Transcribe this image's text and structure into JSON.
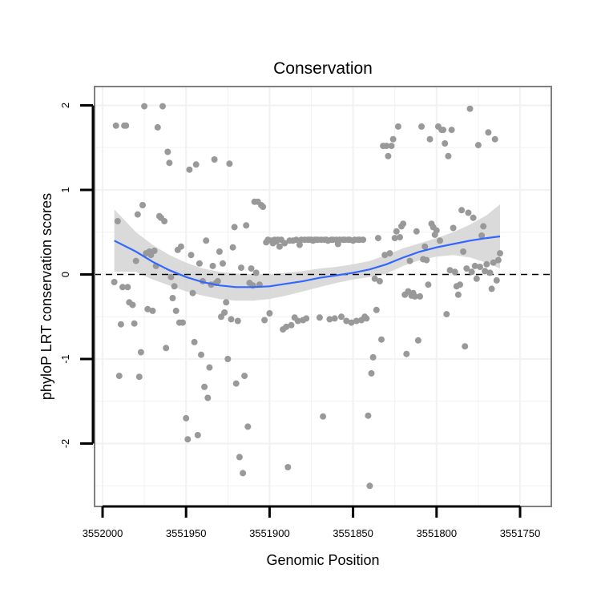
{
  "chart_data": {
    "type": "scatter",
    "title": "Conservation",
    "xlabel": "Genomic Position",
    "ylabel": "phyloP LRT conservation scores",
    "x_reversed": true,
    "xlim": [
      3552000,
      3551750
    ],
    "ylim": [
      -2.7,
      2.23
    ],
    "x_ticks": [
      3552000,
      3551950,
      3551900,
      3551850,
      3551800,
      3551750
    ],
    "x_tick_labels": [
      "3552000",
      "3551950",
      "3551900",
      "3551850",
      "3551800",
      "3551750"
    ],
    "y_ticks": [
      -2,
      -1,
      0,
      1,
      2
    ],
    "y_tick_labels": [
      "-2",
      "-1",
      "0",
      "1",
      "2"
    ],
    "reference_line": {
      "y": 0,
      "style": "dashed",
      "color": "#000000"
    },
    "grid": true,
    "legend": "none",
    "colors": {
      "points": "#999999",
      "smooth_line": "#3366FF",
      "confidence_band": "#D3D3D3",
      "grid": "#F2F2F2",
      "panel_border": "#7F7F7F"
    },
    "points": [
      {
        "x": 3551993,
        "y": -0.09
      },
      {
        "x": 3551992,
        "y": 1.76
      },
      {
        "x": 3551991,
        "y": 0.63
      },
      {
        "x": 3551990,
        "y": -1.2
      },
      {
        "x": 3551989,
        "y": -0.59
      },
      {
        "x": 3551988,
        "y": -0.15
      },
      {
        "x": 3551987,
        "y": 1.76
      },
      {
        "x": 3551986,
        "y": 1.76
      },
      {
        "x": 3551985,
        "y": -0.15
      },
      {
        "x": 3551984,
        "y": -0.33
      },
      {
        "x": 3551982,
        "y": -0.36
      },
      {
        "x": 3551981,
        "y": -0.58
      },
      {
        "x": 3551980,
        "y": 0.16
      },
      {
        "x": 3551979,
        "y": 0.71
      },
      {
        "x": 3551978,
        "y": -1.21
      },
      {
        "x": 3551977,
        "y": -0.92
      },
      {
        "x": 3551976,
        "y": 0.82
      },
      {
        "x": 3551975,
        "y": 1.99
      },
      {
        "x": 3551974,
        "y": 0.25
      },
      {
        "x": 3551973,
        "y": -0.41
      },
      {
        "x": 3551972,
        "y": 0.27
      },
      {
        "x": 3551971,
        "y": 0.23
      },
      {
        "x": 3551970,
        "y": -0.43
      },
      {
        "x": 3551969,
        "y": 0.28
      },
      {
        "x": 3551968,
        "y": 0.1
      },
      {
        "x": 3551967,
        "y": 1.74
      },
      {
        "x": 3551966,
        "y": 0.69
      },
      {
        "x": 3551965,
        "y": 0.67
      },
      {
        "x": 3551964,
        "y": 1.99
      },
      {
        "x": 3551963,
        "y": 0.63
      },
      {
        "x": 3551962,
        "y": -0.87
      },
      {
        "x": 3551961,
        "y": 1.45
      },
      {
        "x": 3551960,
        "y": 1.32
      },
      {
        "x": 3551959,
        "y": -0.03
      },
      {
        "x": 3551958,
        "y": -0.28
      },
      {
        "x": 3551957,
        "y": -0.14
      },
      {
        "x": 3551956,
        "y": -0.43
      },
      {
        "x": 3551955,
        "y": 0.29
      },
      {
        "x": 3551954,
        "y": -0.57
      },
      {
        "x": 3551953,
        "y": 0.33
      },
      {
        "x": 3551952,
        "y": -0.57
      },
      {
        "x": 3551950,
        "y": -1.7
      },
      {
        "x": 3551949,
        "y": -1.95
      },
      {
        "x": 3551948,
        "y": 1.24
      },
      {
        "x": 3551947,
        "y": 0.23
      },
      {
        "x": 3551946,
        "y": -0.22
      },
      {
        "x": 3551945,
        "y": -0.8
      },
      {
        "x": 3551944,
        "y": 1.3
      },
      {
        "x": 3551943,
        "y": -1.9
      },
      {
        "x": 3551942,
        "y": 0.13
      },
      {
        "x": 3551941,
        "y": -0.95
      },
      {
        "x": 3551940,
        "y": -0.08
      },
      {
        "x": 3551939,
        "y": -1.33
      },
      {
        "x": 3551938,
        "y": 0.4
      },
      {
        "x": 3551937,
        "y": -1.46
      },
      {
        "x": 3551936,
        "y": -1.1
      },
      {
        "x": 3551935,
        "y": -0.12
      },
      {
        "x": 3551934,
        "y": 0.1
      },
      {
        "x": 3551933,
        "y": 1.36
      },
      {
        "x": 3551932,
        "y": -0.1
      },
      {
        "x": 3551931,
        "y": -0.08
      },
      {
        "x": 3551930,
        "y": 0.27
      },
      {
        "x": 3551929,
        "y": -0.5
      },
      {
        "x": 3551928,
        "y": 0.13
      },
      {
        "x": 3551927,
        "y": -0.45
      },
      {
        "x": 3551926,
        "y": -0.33
      },
      {
        "x": 3551925,
        "y": -1.0
      },
      {
        "x": 3551924,
        "y": 1.31
      },
      {
        "x": 3551923,
        "y": -0.53
      },
      {
        "x": 3551922,
        "y": 0.32
      },
      {
        "x": 3551921,
        "y": 0.56
      },
      {
        "x": 3551920,
        "y": -1.29
      },
      {
        "x": 3551919,
        "y": -0.55
      },
      {
        "x": 3551918,
        "y": -2.16
      },
      {
        "x": 3551917,
        "y": 0.08
      },
      {
        "x": 3551916,
        "y": -2.35
      },
      {
        "x": 3551915,
        "y": -1.2
      },
      {
        "x": 3551914,
        "y": 0.58
      },
      {
        "x": 3551913,
        "y": -1.8
      },
      {
        "x": 3551912,
        "y": -0.1
      },
      {
        "x": 3551911,
        "y": 0.07
      },
      {
        "x": 3551910,
        "y": -0.13
      },
      {
        "x": 3551909,
        "y": 0.86
      },
      {
        "x": 3551908,
        "y": 0.02
      },
      {
        "x": 3551907,
        "y": 0.86
      },
      {
        "x": 3551906,
        "y": -0.12
      },
      {
        "x": 3551905,
        "y": 0.82
      },
      {
        "x": 3551904,
        "y": 0.8
      },
      {
        "x": 3551903,
        "y": -0.54
      },
      {
        "x": 3551902,
        "y": 0.38
      },
      {
        "x": 3551901,
        "y": 0.41
      },
      {
        "x": 3551900,
        "y": -0.46
      },
      {
        "x": 3551899,
        "y": 0.4
      },
      {
        "x": 3551898,
        "y": 0.37
      },
      {
        "x": 3551897,
        "y": 0.41
      },
      {
        "x": 3551896,
        "y": 0.39
      },
      {
        "x": 3551895,
        "y": 0.41
      },
      {
        "x": 3551894,
        "y": 0.33
      },
      {
        "x": 3551893,
        "y": 0.41
      },
      {
        "x": 3551892,
        "y": -0.65
      },
      {
        "x": 3551891,
        "y": 0.37
      },
      {
        "x": 3551890,
        "y": -0.62
      },
      {
        "x": 3551889,
        "y": -2.28
      },
      {
        "x": 3551888,
        "y": 0.4
      },
      {
        "x": 3551887,
        "y": -0.6
      },
      {
        "x": 3551886,
        "y": 0.4
      },
      {
        "x": 3551885,
        "y": -0.51
      },
      {
        "x": 3551884,
        "y": 0.41
      },
      {
        "x": 3551883,
        "y": -0.55
      },
      {
        "x": 3551882,
        "y": 0.35
      },
      {
        "x": 3551881,
        "y": 0.41
      },
      {
        "x": 3551880,
        "y": -0.54
      },
      {
        "x": 3551879,
        "y": 0.41
      },
      {
        "x": 3551878,
        "y": -0.52
      },
      {
        "x": 3551877,
        "y": 0.41
      },
      {
        "x": 3551876,
        "y": 0.41
      },
      {
        "x": 3551875,
        "y": 0.41
      },
      {
        "x": 3551874,
        "y": 0.4
      },
      {
        "x": 3551873,
        "y": 0.41
      },
      {
        "x": 3551872,
        "y": 0.41
      },
      {
        "x": 3551871,
        "y": 0.41
      },
      {
        "x": 3551870,
        "y": -0.51
      },
      {
        "x": 3551869,
        "y": 0.41
      },
      {
        "x": 3551868,
        "y": -1.68
      },
      {
        "x": 3551867,
        "y": 0.41
      },
      {
        "x": 3551866,
        "y": 0.41
      },
      {
        "x": 3551865,
        "y": 0.4
      },
      {
        "x": 3551864,
        "y": -0.53
      },
      {
        "x": 3551863,
        "y": 0.41
      },
      {
        "x": 3551862,
        "y": 0.41
      },
      {
        "x": 3551861,
        "y": -0.52
      },
      {
        "x": 3551860,
        "y": 0.41
      },
      {
        "x": 3551859,
        "y": 0.36
      },
      {
        "x": 3551858,
        "y": 0.41
      },
      {
        "x": 3551857,
        "y": -0.5
      },
      {
        "x": 3551856,
        "y": 0.41
      },
      {
        "x": 3551855,
        "y": 0.41
      },
      {
        "x": 3551854,
        "y": -0.55
      },
      {
        "x": 3551853,
        "y": 0.41
      },
      {
        "x": 3551852,
        "y": 0.41
      },
      {
        "x": 3551851,
        "y": -0.57
      },
      {
        "x": 3551850,
        "y": 0.4
      },
      {
        "x": 3551849,
        "y": 0.41
      },
      {
        "x": 3551848,
        "y": -0.55
      },
      {
        "x": 3551847,
        "y": 0.41
      },
      {
        "x": 3551846,
        "y": 0.41
      },
      {
        "x": 3551845,
        "y": -0.54
      },
      {
        "x": 3551844,
        "y": 0.41
      },
      {
        "x": 3551843,
        "y": -0.5
      },
      {
        "x": 3551842,
        "y": -0.52
      },
      {
        "x": 3551841,
        "y": -1.67
      },
      {
        "x": 3551840,
        "y": -2.5
      },
      {
        "x": 3551839,
        "y": -1.17
      },
      {
        "x": 3551838,
        "y": -0.98
      },
      {
        "x": 3551837,
        "y": -0.05
      },
      {
        "x": 3551836,
        "y": -0.42
      },
      {
        "x": 3551835,
        "y": 0.43
      },
      {
        "x": 3551834,
        "y": -0.08
      },
      {
        "x": 3551833,
        "y": -0.77
      },
      {
        "x": 3551832,
        "y": 1.52
      },
      {
        "x": 3551831,
        "y": 0.23
      },
      {
        "x": 3551830,
        "y": 1.52
      },
      {
        "x": 3551829,
        "y": 1.4
      },
      {
        "x": 3551828,
        "y": 0.25
      },
      {
        "x": 3551827,
        "y": 1.52
      },
      {
        "x": 3551826,
        "y": 1.6
      },
      {
        "x": 3551825,
        "y": 0.43
      },
      {
        "x": 3551824,
        "y": 0.51
      },
      {
        "x": 3551823,
        "y": 1.75
      },
      {
        "x": 3551822,
        "y": 0.44
      },
      {
        "x": 3551821,
        "y": 0.57
      },
      {
        "x": 3551820,
        "y": 0.6
      },
      {
        "x": 3551819,
        "y": -0.24
      },
      {
        "x": 3551818,
        "y": -0.94
      },
      {
        "x": 3551817,
        "y": -0.2
      },
      {
        "x": 3551816,
        "y": 0.16
      },
      {
        "x": 3551815,
        "y": -0.25
      },
      {
        "x": 3551814,
        "y": -0.22
      },
      {
        "x": 3551813,
        "y": -0.26
      },
      {
        "x": 3551812,
        "y": 0.51
      },
      {
        "x": 3551811,
        "y": -0.78
      },
      {
        "x": 3551810,
        "y": -0.26
      },
      {
        "x": 3551809,
        "y": 1.75
      },
      {
        "x": 3551808,
        "y": 0.18
      },
      {
        "x": 3551807,
        "y": 0.33
      },
      {
        "x": 3551806,
        "y": 0.17
      },
      {
        "x": 3551805,
        "y": -0.12
      },
      {
        "x": 3551804,
        "y": 1.6
      },
      {
        "x": 3551803,
        "y": 0.6
      },
      {
        "x": 3551802,
        "y": 0.56
      },
      {
        "x": 3551801,
        "y": 0.47
      },
      {
        "x": 3551800,
        "y": 0.52
      },
      {
        "x": 3551799,
        "y": 1.75
      },
      {
        "x": 3551798,
        "y": 0.4
      },
      {
        "x": 3551797,
        "y": 1.71
      },
      {
        "x": 3551796,
        "y": 1.71
      },
      {
        "x": 3551795,
        "y": 1.55
      },
      {
        "x": 3551794,
        "y": -0.47
      },
      {
        "x": 3551793,
        "y": 1.4
      },
      {
        "x": 3551792,
        "y": 0.05
      },
      {
        "x": 3551791,
        "y": 1.71
      },
      {
        "x": 3551790,
        "y": 0.55
      },
      {
        "x": 3551789,
        "y": 0.03
      },
      {
        "x": 3551788,
        "y": -0.14
      },
      {
        "x": 3551787,
        "y": -0.24
      },
      {
        "x": 3551786,
        "y": -0.12
      },
      {
        "x": 3551785,
        "y": 0.76
      },
      {
        "x": 3551784,
        "y": 0.27
      },
      {
        "x": 3551783,
        "y": -0.85
      },
      {
        "x": 3551782,
        "y": 0.07
      },
      {
        "x": 3551781,
        "y": 0.73
      },
      {
        "x": 3551780,
        "y": 1.96
      },
      {
        "x": 3551779,
        "y": 0.03
      },
      {
        "x": 3551778,
        "y": 0.67
      },
      {
        "x": 3551777,
        "y": 0.1
      },
      {
        "x": 3551776,
        "y": -0.05
      },
      {
        "x": 3551775,
        "y": 1.53
      },
      {
        "x": 3551774,
        "y": 0.09
      },
      {
        "x": 3551773,
        "y": 0.46
      },
      {
        "x": 3551772,
        "y": 0.57
      },
      {
        "x": 3551771,
        "y": 0.04
      },
      {
        "x": 3551770,
        "y": 0.12
      },
      {
        "x": 3551769,
        "y": 1.68
      },
      {
        "x": 3551768,
        "y": 0.02
      },
      {
        "x": 3551767,
        "y": -0.17
      },
      {
        "x": 3551766,
        "y": 0.14
      },
      {
        "x": 3551765,
        "y": 1.6
      },
      {
        "x": 3551764,
        "y": -0.07
      },
      {
        "x": 3551763,
        "y": 0.17
      },
      {
        "x": 3551762,
        "y": 0.25
      }
    ],
    "smooth": {
      "x": [
        3551993,
        3551980,
        3551970,
        3551960,
        3551950,
        3551940,
        3551930,
        3551920,
        3551910,
        3551900,
        3551890,
        3551880,
        3551870,
        3551860,
        3551850,
        3551840,
        3551830,
        3551820,
        3551810,
        3551800,
        3551790,
        3551780,
        3551770,
        3551762
      ],
      "y": [
        0.4,
        0.27,
        0.15,
        0.05,
        -0.03,
        -0.09,
        -0.13,
        -0.15,
        -0.15,
        -0.14,
        -0.11,
        -0.08,
        -0.04,
        -0.01,
        0.02,
        0.06,
        0.12,
        0.2,
        0.27,
        0.32,
        0.36,
        0.4,
        0.43,
        0.45
      ],
      "lower": [
        0.03,
        0.03,
        -0.06,
        -0.13,
        -0.2,
        -0.25,
        -0.29,
        -0.31,
        -0.31,
        -0.29,
        -0.25,
        -0.2,
        -0.15,
        -0.1,
        -0.06,
        -0.03,
        0.01,
        0.1,
        0.17,
        0.21,
        0.23,
        0.2,
        0.14,
        0.07
      ],
      "upper": [
        0.77,
        0.5,
        0.35,
        0.23,
        0.14,
        0.07,
        0.03,
        0.01,
        0.0,
        0.0,
        0.02,
        0.04,
        0.07,
        0.09,
        0.12,
        0.16,
        0.23,
        0.31,
        0.37,
        0.43,
        0.5,
        0.59,
        0.7,
        0.83
      ]
    }
  }
}
